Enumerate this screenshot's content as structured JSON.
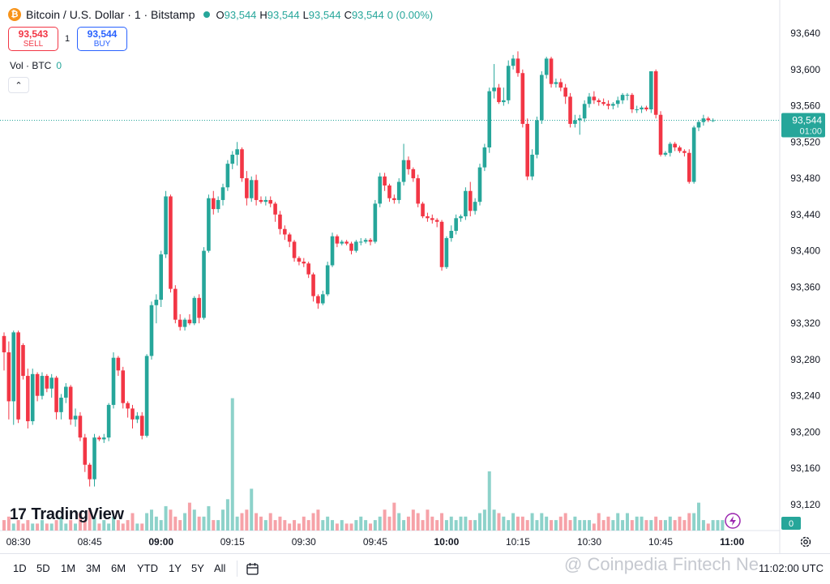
{
  "header": {
    "symbol_icon": "bitcoin-icon",
    "symbol_title": "Bitcoin / U.S. Dollar · 1 · Bitstamp",
    "open_label": "O",
    "open": "93,544",
    "high_label": "H",
    "high": "93,544",
    "low_label": "L",
    "low": "93,544",
    "close_label": "C",
    "close": "93,544",
    "change": "0 (0.00%)"
  },
  "trade": {
    "sell_price": "93,543",
    "sell_label": "SELL",
    "quantity": "1",
    "buy_price": "93,544",
    "buy_label": "BUY"
  },
  "volume_legend": {
    "label": "Vol · BTC",
    "value": "0"
  },
  "price_tag": {
    "price": "93,544",
    "countdown": "01:00",
    "volume_tag": "0"
  },
  "branding": {
    "logo": "TradingView",
    "watermark": "@ Coinpedia Fintech Ne"
  },
  "bottom_bar": {
    "ranges": [
      "1D",
      "5D",
      "1M",
      "3M",
      "6M",
      "YTD",
      "1Y",
      "5Y",
      "All"
    ],
    "clock": "11:02:00 UTC"
  },
  "colors": {
    "up": "#26a69a",
    "down": "#f23645",
    "volume_up": "#8dd2ca",
    "volume_down": "#f6a2a8"
  },
  "chart_data": {
    "type": "candlestick",
    "interval": "1 minute",
    "y_axis": {
      "ticks": [
        93120,
        93160,
        93200,
        93240,
        93280,
        93320,
        93360,
        93400,
        93440,
        93480,
        93520,
        93560,
        93600,
        93640
      ],
      "tick_labels": [
        "93,120",
        "93,160",
        "93,200",
        "93,240",
        "93,280",
        "93,320",
        "93,360",
        "93,400",
        "93,440",
        "93,480",
        "93,520",
        "93,560",
        "93,600",
        "93,640"
      ],
      "range": [
        93100,
        93660
      ]
    },
    "x_axis": {
      "ticks": [
        "08:30",
        "08:45",
        "09:00",
        "09:15",
        "09:30",
        "09:45",
        "10:00",
        "10:15",
        "10:30",
        "10:45",
        "11:00"
      ],
      "bold": [
        "09:00",
        "10:00",
        "11:00"
      ],
      "tick_index": [
        3,
        18,
        33,
        48,
        63,
        78,
        93,
        108,
        123,
        138,
        153
      ]
    },
    "last_price": 93544,
    "candles": [
      {
        "o": 93306,
        "h": 93310,
        "l": 93268,
        "c": 93288
      },
      {
        "o": 93288,
        "h": 93300,
        "l": 93214,
        "c": 93234
      },
      {
        "o": 93234,
        "h": 93312,
        "l": 93208,
        "c": 93310
      },
      {
        "o": 93310,
        "h": 93312,
        "l": 93210,
        "c": 93214
      },
      {
        "o": 93296,
        "h": 93298,
        "l": 93258,
        "c": 93262
      },
      {
        "o": 93262,
        "h": 93270,
        "l": 93204,
        "c": 93212
      },
      {
        "o": 93212,
        "h": 93270,
        "l": 93208,
        "c": 93264
      },
      {
        "o": 93264,
        "h": 93266,
        "l": 93234,
        "c": 93240
      },
      {
        "o": 93240,
        "h": 93266,
        "l": 93236,
        "c": 93262
      },
      {
        "o": 93262,
        "h": 93264,
        "l": 93244,
        "c": 93248
      },
      {
        "o": 93248,
        "h": 93264,
        "l": 93238,
        "c": 93260
      },
      {
        "o": 93260,
        "h": 93262,
        "l": 93214,
        "c": 93222
      },
      {
        "o": 93222,
        "h": 93242,
        "l": 93214,
        "c": 93238
      },
      {
        "o": 93238,
        "h": 93254,
        "l": 93232,
        "c": 93250
      },
      {
        "o": 93250,
        "h": 93252,
        "l": 93208,
        "c": 93214
      },
      {
        "o": 93214,
        "h": 93226,
        "l": 93206,
        "c": 93218
      },
      {
        "o": 93218,
        "h": 93222,
        "l": 93190,
        "c": 93194
      },
      {
        "o": 93194,
        "h": 93198,
        "l": 93156,
        "c": 93164
      },
      {
        "o": 93164,
        "h": 93166,
        "l": 93140,
        "c": 93148
      },
      {
        "o": 93148,
        "h": 93198,
        "l": 93140,
        "c": 93194
      },
      {
        "o": 93194,
        "h": 93196,
        "l": 93190,
        "c": 93192
      },
      {
        "o": 93192,
        "h": 93198,
        "l": 93188,
        "c": 93194
      },
      {
        "o": 93194,
        "h": 93232,
        "l": 93190,
        "c": 93230
      },
      {
        "o": 93230,
        "h": 93288,
        "l": 93226,
        "c": 93282
      },
      {
        "o": 93282,
        "h": 93284,
        "l": 93262,
        "c": 93268
      },
      {
        "o": 93268,
        "h": 93272,
        "l": 93226,
        "c": 93232
      },
      {
        "o": 93232,
        "h": 93234,
        "l": 93216,
        "c": 93226
      },
      {
        "o": 93226,
        "h": 93230,
        "l": 93204,
        "c": 93214
      },
      {
        "o": 93214,
        "h": 93222,
        "l": 93210,
        "c": 93218
      },
      {
        "o": 93218,
        "h": 93222,
        "l": 93192,
        "c": 93196
      },
      {
        "o": 93196,
        "h": 93286,
        "l": 93194,
        "c": 93284
      },
      {
        "o": 93284,
        "h": 93344,
        "l": 93280,
        "c": 93340
      },
      {
        "o": 93340,
        "h": 93352,
        "l": 93320,
        "c": 93346
      },
      {
        "o": 93346,
        "h": 93400,
        "l": 93338,
        "c": 93396
      },
      {
        "o": 93396,
        "h": 93466,
        "l": 93392,
        "c": 93460
      },
      {
        "o": 93460,
        "h": 93462,
        "l": 93354,
        "c": 93358
      },
      {
        "o": 93358,
        "h": 93362,
        "l": 93320,
        "c": 93324
      },
      {
        "o": 93324,
        "h": 93330,
        "l": 93312,
        "c": 93316
      },
      {
        "o": 93316,
        "h": 93326,
        "l": 93312,
        "c": 93324
      },
      {
        "o": 93324,
        "h": 93330,
        "l": 93318,
        "c": 93320
      },
      {
        "o": 93320,
        "h": 93350,
        "l": 93318,
        "c": 93348
      },
      {
        "o": 93348,
        "h": 93352,
        "l": 93320,
        "c": 93326
      },
      {
        "o": 93326,
        "h": 93404,
        "l": 93324,
        "c": 93400
      },
      {
        "o": 93400,
        "h": 93462,
        "l": 93398,
        "c": 93458
      },
      {
        "o": 93458,
        "h": 93466,
        "l": 93440,
        "c": 93446
      },
      {
        "o": 93446,
        "h": 93460,
        "l": 93442,
        "c": 93456
      },
      {
        "o": 93456,
        "h": 93474,
        "l": 93450,
        "c": 93470
      },
      {
        "o": 93470,
        "h": 93500,
        "l": 93466,
        "c": 93496
      },
      {
        "o": 93496,
        "h": 93510,
        "l": 93490,
        "c": 93506
      },
      {
        "o": 93506,
        "h": 93520,
        "l": 93494,
        "c": 93512
      },
      {
        "o": 93512,
        "h": 93514,
        "l": 93476,
        "c": 93480
      },
      {
        "o": 93480,
        "h": 93488,
        "l": 93450,
        "c": 93458
      },
      {
        "o": 93458,
        "h": 93482,
        "l": 93454,
        "c": 93478
      },
      {
        "o": 93478,
        "h": 93484,
        "l": 93450,
        "c": 93456
      },
      {
        "o": 93456,
        "h": 93460,
        "l": 93452,
        "c": 93454
      },
      {
        "o": 93454,
        "h": 93460,
        "l": 93450,
        "c": 93456
      },
      {
        "o": 93456,
        "h": 93460,
        "l": 93448,
        "c": 93452
      },
      {
        "o": 93452,
        "h": 93454,
        "l": 93432,
        "c": 93440
      },
      {
        "o": 93440,
        "h": 93444,
        "l": 93418,
        "c": 93424
      },
      {
        "o": 93424,
        "h": 93428,
        "l": 93412,
        "c": 93418
      },
      {
        "o": 93418,
        "h": 93420,
        "l": 93404,
        "c": 93410
      },
      {
        "o": 93410,
        "h": 93412,
        "l": 93388,
        "c": 93392
      },
      {
        "o": 93392,
        "h": 93394,
        "l": 93384,
        "c": 93388
      },
      {
        "o": 93388,
        "h": 93392,
        "l": 93382,
        "c": 93386
      },
      {
        "o": 93386,
        "h": 93388,
        "l": 93370,
        "c": 93374
      },
      {
        "o": 93374,
        "h": 93376,
        "l": 93344,
        "c": 93350
      },
      {
        "o": 93350,
        "h": 93352,
        "l": 93336,
        "c": 93342
      },
      {
        "o": 93342,
        "h": 93356,
        "l": 93340,
        "c": 93352
      },
      {
        "o": 93352,
        "h": 93388,
        "l": 93350,
        "c": 93384
      },
      {
        "o": 93384,
        "h": 93420,
        "l": 93382,
        "c": 93416
      },
      {
        "o": 93416,
        "h": 93418,
        "l": 93404,
        "c": 93408
      },
      {
        "o": 93408,
        "h": 93412,
        "l": 93406,
        "c": 93410
      },
      {
        "o": 93410,
        "h": 93412,
        "l": 93406,
        "c": 93408
      },
      {
        "o": 93408,
        "h": 93410,
        "l": 93396,
        "c": 93400
      },
      {
        "o": 93400,
        "h": 93412,
        "l": 93398,
        "c": 93410
      },
      {
        "o": 93410,
        "h": 93414,
        "l": 93406,
        "c": 93410
      },
      {
        "o": 93410,
        "h": 93414,
        "l": 93408,
        "c": 93412
      },
      {
        "o": 93412,
        "h": 93414,
        "l": 93406,
        "c": 93410
      },
      {
        "o": 93410,
        "h": 93456,
        "l": 93408,
        "c": 93452
      },
      {
        "o": 93452,
        "h": 93486,
        "l": 93448,
        "c": 93482
      },
      {
        "o": 93482,
        "h": 93486,
        "l": 93466,
        "c": 93472
      },
      {
        "o": 93472,
        "h": 93474,
        "l": 93454,
        "c": 93458
      },
      {
        "o": 93458,
        "h": 93462,
        "l": 93452,
        "c": 93456
      },
      {
        "o": 93456,
        "h": 93480,
        "l": 93452,
        "c": 93476
      },
      {
        "o": 93476,
        "h": 93518,
        "l": 93472,
        "c": 93500
      },
      {
        "o": 93500,
        "h": 93504,
        "l": 93484,
        "c": 93490
      },
      {
        "o": 93490,
        "h": 93492,
        "l": 93476,
        "c": 93480
      },
      {
        "o": 93480,
        "h": 93484,
        "l": 93448,
        "c": 93452
      },
      {
        "o": 93452,
        "h": 93454,
        "l": 93436,
        "c": 93438
      },
      {
        "o": 93438,
        "h": 93442,
        "l": 93432,
        "c": 93436
      },
      {
        "o": 93436,
        "h": 93440,
        "l": 93430,
        "c": 93434
      },
      {
        "o": 93434,
        "h": 93436,
        "l": 93426,
        "c": 93432
      },
      {
        "o": 93432,
        "h": 93434,
        "l": 93378,
        "c": 93382
      },
      {
        "o": 93382,
        "h": 93416,
        "l": 93380,
        "c": 93414
      },
      {
        "o": 93414,
        "h": 93428,
        "l": 93410,
        "c": 93422
      },
      {
        "o": 93422,
        "h": 93440,
        "l": 93418,
        "c": 93436
      },
      {
        "o": 93436,
        "h": 93440,
        "l": 93432,
        "c": 93438
      },
      {
        "o": 93438,
        "h": 93470,
        "l": 93434,
        "c": 93466
      },
      {
        "o": 93466,
        "h": 93476,
        "l": 93438,
        "c": 93444
      },
      {
        "o": 93444,
        "h": 93458,
        "l": 93440,
        "c": 93454
      },
      {
        "o": 93454,
        "h": 93496,
        "l": 93450,
        "c": 93492
      },
      {
        "o": 93492,
        "h": 93518,
        "l": 93488,
        "c": 93514
      },
      {
        "o": 93514,
        "h": 93580,
        "l": 93508,
        "c": 93576
      },
      {
        "o": 93576,
        "h": 93606,
        "l": 93568,
        "c": 93580
      },
      {
        "o": 93580,
        "h": 93584,
        "l": 93562,
        "c": 93564
      },
      {
        "o": 93564,
        "h": 93580,
        "l": 93560,
        "c": 93566
      },
      {
        "o": 93566,
        "h": 93610,
        "l": 93562,
        "c": 93604
      },
      {
        "o": 93604,
        "h": 93616,
        "l": 93600,
        "c": 93612
      },
      {
        "o": 93612,
        "h": 93620,
        "l": 93592,
        "c": 93596
      },
      {
        "o": 93596,
        "h": 93600,
        "l": 93536,
        "c": 93540
      },
      {
        "o": 93540,
        "h": 93546,
        "l": 93478,
        "c": 93482
      },
      {
        "o": 93482,
        "h": 93512,
        "l": 93478,
        "c": 93506
      },
      {
        "o": 93506,
        "h": 93548,
        "l": 93502,
        "c": 93544
      },
      {
        "o": 93544,
        "h": 93598,
        "l": 93540,
        "c": 93594
      },
      {
        "o": 93594,
        "h": 93614,
        "l": 93590,
        "c": 93612
      },
      {
        "o": 93612,
        "h": 93614,
        "l": 93580,
        "c": 93584
      },
      {
        "o": 93584,
        "h": 93590,
        "l": 93580,
        "c": 93586
      },
      {
        "o": 93586,
        "h": 93590,
        "l": 93576,
        "c": 93580
      },
      {
        "o": 93580,
        "h": 93584,
        "l": 93562,
        "c": 93570
      },
      {
        "o": 93570,
        "h": 93574,
        "l": 93536,
        "c": 93540
      },
      {
        "o": 93540,
        "h": 93550,
        "l": 93536,
        "c": 93544
      },
      {
        "o": 93544,
        "h": 93550,
        "l": 93528,
        "c": 93546
      },
      {
        "o": 93546,
        "h": 93566,
        "l": 93542,
        "c": 93562
      },
      {
        "o": 93562,
        "h": 93574,
        "l": 93558,
        "c": 93570
      },
      {
        "o": 93570,
        "h": 93576,
        "l": 93562,
        "c": 93566
      },
      {
        "o": 93566,
        "h": 93568,
        "l": 93560,
        "c": 93564
      },
      {
        "o": 93564,
        "h": 93568,
        "l": 93560,
        "c": 93562
      },
      {
        "o": 93562,
        "h": 93566,
        "l": 93556,
        "c": 93560
      },
      {
        "o": 93560,
        "h": 93564,
        "l": 93556,
        "c": 93562
      },
      {
        "o": 93562,
        "h": 93570,
        "l": 93558,
        "c": 93566
      },
      {
        "o": 93566,
        "h": 93574,
        "l": 93562,
        "c": 93572
      },
      {
        "o": 93572,
        "h": 93574,
        "l": 93566,
        "c": 93572
      },
      {
        "o": 93572,
        "h": 93574,
        "l": 93552,
        "c": 93556
      },
      {
        "o": 93556,
        "h": 93560,
        "l": 93552,
        "c": 93556
      },
      {
        "o": 93556,
        "h": 93560,
        "l": 93552,
        "c": 93558
      },
      {
        "o": 93558,
        "h": 93560,
        "l": 93554,
        "c": 93556
      },
      {
        "o": 93556,
        "h": 93598,
        "l": 93552,
        "c": 93598
      },
      {
        "o": 93598,
        "h": 93600,
        "l": 93546,
        "c": 93550
      },
      {
        "o": 93550,
        "h": 93554,
        "l": 93504,
        "c": 93506
      },
      {
        "o": 93506,
        "h": 93510,
        "l": 93504,
        "c": 93508
      },
      {
        "o": 93508,
        "h": 93520,
        "l": 93504,
        "c": 93518
      },
      {
        "o": 93518,
        "h": 93520,
        "l": 93510,
        "c": 93514
      },
      {
        "o": 93514,
        "h": 93516,
        "l": 93508,
        "c": 93510
      },
      {
        "o": 93510,
        "h": 93512,
        "l": 93504,
        "c": 93508
      },
      {
        "o": 93508,
        "h": 93512,
        "l": 93474,
        "c": 93476
      },
      {
        "o": 93476,
        "h": 93538,
        "l": 93474,
        "c": 93536
      },
      {
        "o": 93536,
        "h": 93544,
        "l": 93532,
        "c": 93542
      },
      {
        "o": 93542,
        "h": 93550,
        "l": 93538,
        "c": 93546
      },
      {
        "o": 93546,
        "h": 93548,
        "l": 93542,
        "c": 93544
      },
      {
        "o": 93544,
        "h": 93546,
        "l": 93542,
        "c": 93544
      }
    ],
    "volume": [
      3,
      4,
      2,
      3,
      2,
      3,
      2,
      2,
      3,
      2,
      2,
      3,
      4,
      2,
      3,
      2,
      5,
      3,
      6,
      4,
      2,
      3,
      2,
      4,
      3,
      2,
      3,
      5,
      2,
      2,
      5,
      6,
      4,
      3,
      7,
      6,
      4,
      3,
      5,
      8,
      6,
      4,
      4,
      7,
      3,
      3,
      6,
      9,
      38,
      4,
      5,
      6,
      12,
      5,
      4,
      3,
      5,
      3,
      4,
      3,
      2,
      3,
      2,
      4,
      3,
      5,
      6,
      3,
      4,
      3,
      2,
      3,
      2,
      2,
      3,
      4,
      3,
      2,
      3,
      4,
      6,
      4,
      8,
      5,
      3,
      4,
      6,
      5,
      3,
      6,
      4,
      3,
      5,
      3,
      4,
      3,
      4,
      4,
      3,
      3,
      5,
      6,
      17,
      6,
      5,
      4,
      3,
      5,
      4,
      4,
      3,
      5,
      3,
      5,
      4,
      3,
      3,
      4,
      5,
      3,
      4,
      3,
      3,
      3,
      2,
      5,
      3,
      4,
      3,
      5,
      3,
      5,
      3,
      4,
      4,
      3,
      3,
      4,
      3,
      3,
      4,
      3,
      4,
      3,
      5,
      5,
      8,
      3,
      2,
      3,
      3,
      3
    ]
  }
}
